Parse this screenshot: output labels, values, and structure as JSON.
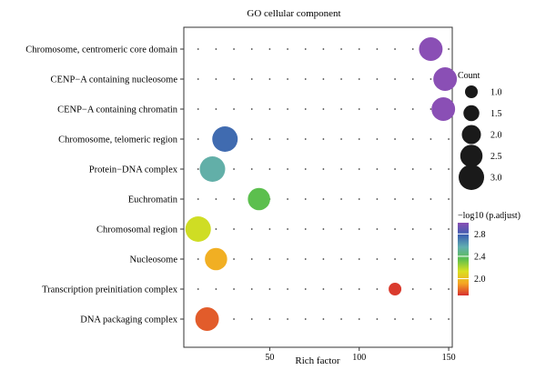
{
  "chart_data": {
    "type": "scatter",
    "title": "GO cellular component",
    "xlabel": "Rich factor",
    "ylabel": "",
    "xlim": [
      2,
      152
    ],
    "xticks": [
      50,
      100,
      150
    ],
    "categories": [
      "Chromosome, centromeric core domain",
      "CENP−A containing nucleosome",
      "CENP−A containing chromatin",
      "Chromosome, telomeric region",
      "Protein−DNA complex",
      "Euchromatin",
      "Chromosomal region",
      "Nucleosome",
      "Transcription preinitiation complex",
      "DNA packaging complex"
    ],
    "points": [
      {
        "term": "Chromosome, centromeric core domain",
        "rich_factor": 140,
        "count": 2.7,
        "neg_log10_padj": 3.0
      },
      {
        "term": "CENP−A containing nucleosome",
        "rich_factor": 148,
        "count": 2.7,
        "neg_log10_padj": 3.0
      },
      {
        "term": "CENP−A containing chromatin",
        "rich_factor": 147,
        "count": 2.7,
        "neg_log10_padj": 3.0
      },
      {
        "term": "Chromosome, telomeric region",
        "rich_factor": 25,
        "count": 3.0,
        "neg_log10_padj": 2.75
      },
      {
        "term": "Protein−DNA complex",
        "rich_factor": 18,
        "count": 3.0,
        "neg_log10_padj": 2.55
      },
      {
        "term": "Euchromatin",
        "rich_factor": 44,
        "count": 2.5,
        "neg_log10_padj": 2.35
      },
      {
        "term": "Chromosomal region",
        "rich_factor": 10,
        "count": 3.0,
        "neg_log10_padj": 2.15
      },
      {
        "term": "Nucleosome",
        "rich_factor": 20,
        "count": 2.5,
        "neg_log10_padj": 1.95
      },
      {
        "term": "Transcription preinitiation complex",
        "rich_factor": 120,
        "count": 1.0,
        "neg_log10_padj": 1.72
      },
      {
        "term": "DNA packaging complex",
        "rich_factor": 15,
        "count": 2.7,
        "neg_log10_padj": 1.78
      }
    ],
    "size_legend": {
      "title": "Count",
      "values": [
        1.0,
        1.5,
        2.0,
        2.5,
        3.0
      ],
      "labels": [
        "1.0",
        "1.5",
        "2.0",
        "2.5",
        "3.0"
      ]
    },
    "color_legend": {
      "title": "−log10 (p.adjust)",
      "range": [
        1.7,
        3.0
      ],
      "ticks": [
        2.0,
        2.4,
        2.8
      ],
      "tick_labels": [
        "2.0",
        "2.4",
        "2.8"
      ],
      "colors": [
        "#d7302f",
        "#f5a623",
        "#d9e021",
        "#5cbf4e",
        "#62aeb0",
        "#3a5fb0",
        "#8a4fb5"
      ]
    },
    "grid": "dotted",
    "legend_placement": "right"
  }
}
